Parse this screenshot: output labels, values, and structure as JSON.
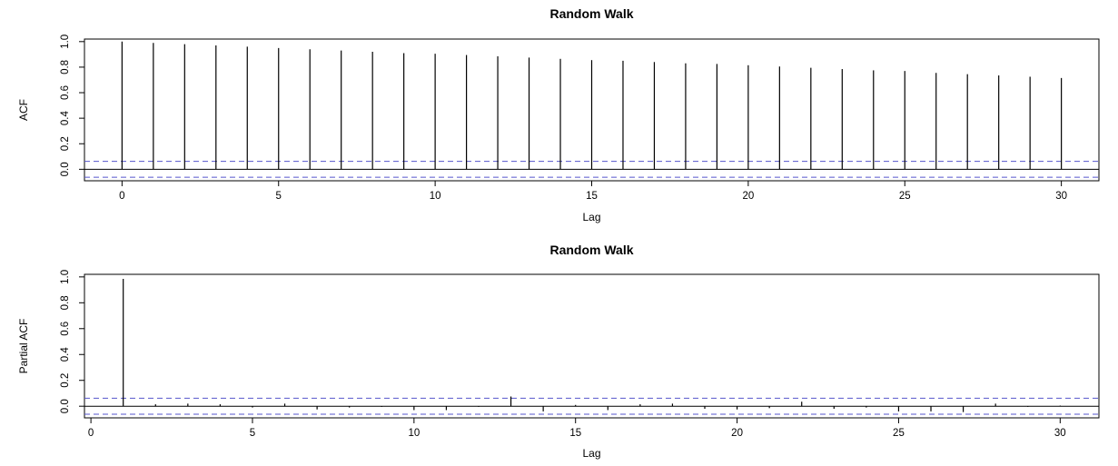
{
  "chart_data": [
    {
      "type": "bar",
      "title": "Random Walk",
      "xlabel": "Lag",
      "ylabel": "ACF",
      "x_ticks": [
        0,
        5,
        10,
        15,
        20,
        25,
        30
      ],
      "y_ticks": [
        "0.0",
        "0.2",
        "0.4",
        "0.6",
        "0.8",
        "1.0"
      ],
      "xlim": [
        -1.2,
        31.2
      ],
      "ylim": [
        -0.09,
        1.02
      ],
      "ci_bound": 0.062,
      "ci_color": "#5555cc",
      "lags": [
        0,
        1,
        2,
        3,
        4,
        5,
        6,
        7,
        8,
        9,
        10,
        11,
        12,
        13,
        14,
        15,
        16,
        17,
        18,
        19,
        20,
        21,
        22,
        23,
        24,
        25,
        26,
        27,
        28,
        29,
        30
      ],
      "values": [
        1.0,
        0.99,
        0.98,
        0.97,
        0.96,
        0.95,
        0.94,
        0.93,
        0.92,
        0.91,
        0.905,
        0.895,
        0.885,
        0.875,
        0.865,
        0.855,
        0.85,
        0.84,
        0.83,
        0.825,
        0.815,
        0.805,
        0.795,
        0.785,
        0.775,
        0.77,
        0.755,
        0.745,
        0.735,
        0.725,
        0.715
      ]
    },
    {
      "type": "bar",
      "title": "Random Walk",
      "xlabel": "Lag",
      "ylabel": "Partial ACF",
      "x_ticks": [
        0,
        5,
        10,
        15,
        20,
        25,
        30
      ],
      "y_ticks": [
        "0.0",
        "0.2",
        "0.4",
        "0.6",
        "0.8",
        "1.0"
      ],
      "xlim": [
        -0.2,
        31.2
      ],
      "ylim": [
        -0.09,
        1.02
      ],
      "ci_bound": 0.062,
      "ci_color": "#5555cc",
      "lags": [
        1,
        2,
        3,
        4,
        5,
        6,
        7,
        8,
        9,
        10,
        11,
        12,
        13,
        14,
        15,
        16,
        17,
        18,
        19,
        20,
        21,
        22,
        23,
        24,
        25,
        26,
        27,
        28,
        29,
        30
      ],
      "values": [
        0.985,
        0.015,
        0.02,
        0.015,
        -0.01,
        0.02,
        -0.025,
        -0.01,
        -0.005,
        -0.03,
        -0.03,
        -0.005,
        0.075,
        -0.04,
        0.01,
        -0.03,
        0.015,
        0.02,
        -0.02,
        -0.025,
        -0.015,
        0.035,
        -0.02,
        -0.01,
        -0.04,
        -0.04,
        -0.045,
        0.02,
        -0.005,
        0.005
      ]
    }
  ]
}
